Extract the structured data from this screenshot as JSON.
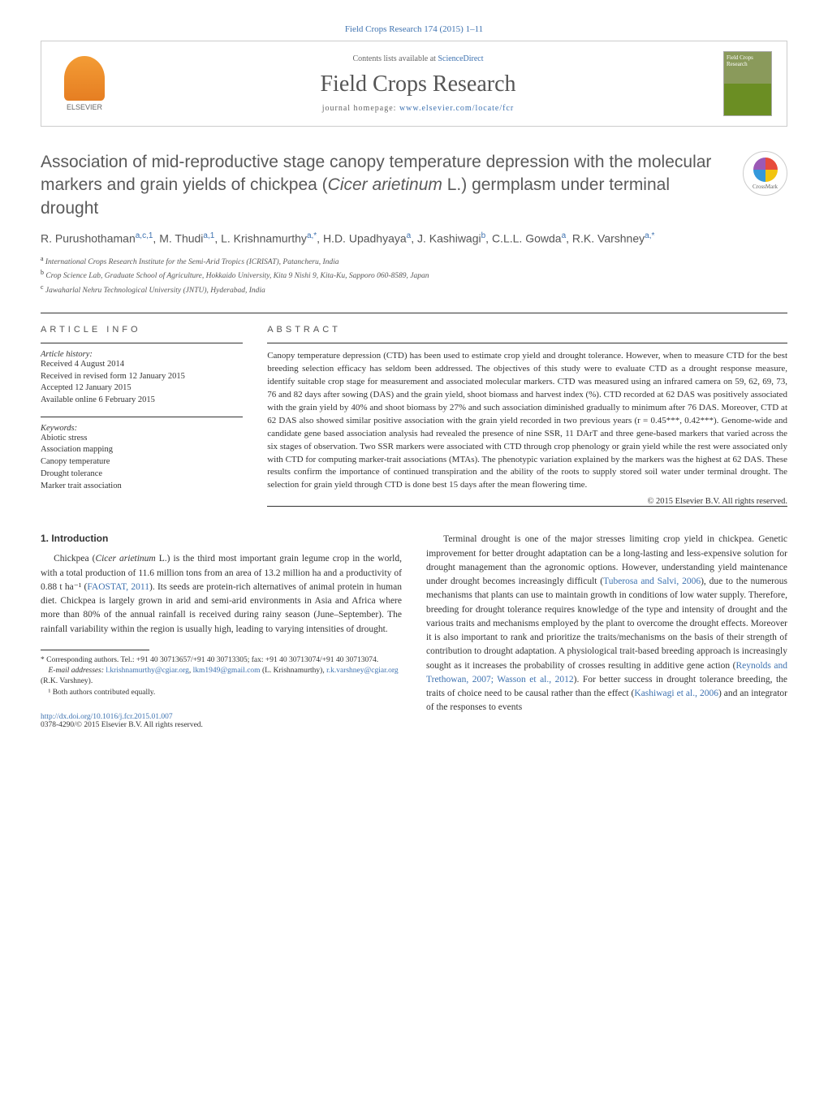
{
  "header": {
    "citation": "Field Crops Research 174 (2015) 1–11",
    "contents_prefix": "Contents lists available at ",
    "contents_link": "ScienceDirect",
    "journal_name": "Field Crops Research",
    "homepage_prefix": "journal homepage: ",
    "homepage_url": "www.elsevier.com/locate/fcr",
    "elsevier_label": "ELSEVIER",
    "cover_text": "Field Crops Research"
  },
  "crossmark": "CrossMark",
  "title": "Association of mid-reproductive stage canopy temperature depression with the molecular markers and grain yields of chickpea (Cicer arietinum L.) germplasm under terminal drought",
  "authors_html": "R. Purushothaman<sup>a,c,1</sup>, M. Thudi<sup>a,1</sup>, L. Krishnamurthy<sup>a,*</sup>, H.D. Upadhyaya<sup>a</sup>, J. Kashiwagi<sup>b</sup>, C.L.L. Gowda<sup>a</sup>, R.K. Varshney<sup>a,*</sup>",
  "affiliations": [
    {
      "sup": "a",
      "text": "International Crops Research Institute for the Semi-Arid Tropics (ICRISAT), Patancheru, India"
    },
    {
      "sup": "b",
      "text": "Crop Science Lab, Graduate School of Agriculture, Hokkaido University, Kita 9 Nishi 9, Kita-Ku, Sapporo 060-8589, Japan"
    },
    {
      "sup": "c",
      "text": "Jawaharlal Nehru Technological University (JNTU), Hyderabad, India"
    }
  ],
  "article_info": {
    "header": "article info",
    "history_label": "Article history:",
    "history": [
      "Received 4 August 2014",
      "Received in revised form 12 January 2015",
      "Accepted 12 January 2015",
      "Available online 6 February 2015"
    ],
    "keywords_label": "Keywords:",
    "keywords": [
      "Abiotic stress",
      "Association mapping",
      "Canopy temperature",
      "Drought tolerance",
      "Marker trait association"
    ]
  },
  "abstract": {
    "header": "abstract",
    "text": "Canopy temperature depression (CTD) has been used to estimate crop yield and drought tolerance. However, when to measure CTD for the best breeding selection efficacy has seldom been addressed. The objectives of this study were to evaluate CTD as a drought response measure, identify suitable crop stage for measurement and associated molecular markers. CTD was measured using an infrared camera on 59, 62, 69, 73, 76 and 82 days after sowing (DAS) and the grain yield, shoot biomass and harvest index (%). CTD recorded at 62 DAS was positively associated with the grain yield by 40% and shoot biomass by 27% and such association diminished gradually to minimum after 76 DAS. Moreover, CTD at 62 DAS also showed similar positive association with the grain yield recorded in two previous years (r = 0.45***, 0.42***). Genome-wide and candidate gene based association analysis had revealed the presence of nine SSR, 11 DArT and three gene-based markers that varied across the six stages of observation. Two SSR markers were associated with CTD through crop phenology or grain yield while the rest were associated only with CTD for computing marker-trait associations (MTAs). The phenotypic variation explained by the markers was the highest at 62 DAS. These results confirm the importance of continued transpiration and the ability of the roots to supply stored soil water under terminal drought. The selection for grain yield through CTD is done best 15 days after the mean flowering time.",
    "copyright": "© 2015 Elsevier B.V. All rights reserved."
  },
  "body": {
    "section_heading": "1. Introduction",
    "col1_p1_pre": "Chickpea (",
    "col1_p1_em": "Cicer arietinum",
    "col1_p1_mid": " L.) is the third most important grain legume crop in the world, with a total production of 11.6 million tons from an area of 13.2 million ha and a productivity of 0.88 t ha⁻¹ (",
    "col1_p1_link": "FAOSTAT, 2011",
    "col1_p1_post": "). Its seeds are protein-rich alternatives of animal protein in human diet. Chickpea is largely grown in arid and semi-arid environments in Asia and Africa where more than 80% of the annual rainfall is received during rainy season (June–September). The rainfall variability within the region is usually high, leading to varying intensities of drought.",
    "col2_p1_pre": "Terminal drought is one of the major stresses limiting crop yield in chickpea. Genetic improvement for better drought adaptation can be a long-lasting and less-expensive solution for drought management than the agronomic options. However, understanding yield maintenance under drought becomes increasingly difficult (",
    "col2_p1_link1": "Tuberosa and Salvi, 2006",
    "col2_p1_mid1": "), due to the numerous mechanisms that plants can use to maintain growth in conditions of low water supply. Therefore, breeding for drought tolerance requires knowledge of the type and intensity of drought and the various traits and mechanisms employed by the plant to overcome the drought effects. Moreover it is also important to rank and prioritize the traits/mechanisms on the basis of their strength of contribution to drought adaptation. A physiological trait-based breeding approach is increasingly sought as it increases the probability of crosses resulting in additive gene action (",
    "col2_p1_link2": "Reynolds and Trethowan, 2007; Wasson et al., 2012",
    "col2_p1_mid2": "). For better success in drought tolerance breeding, the traits of choice need to be causal rather than the effect (",
    "col2_p1_link3": "Kashiwagi et al., 2006",
    "col2_p1_post": ") and an integrator of the responses to events"
  },
  "footnotes": {
    "corr_label": "* Corresponding authors. Tel.: +91 40 30713657/+91 40 30713305; fax: +91 40 30713074/+91 40 30713074.",
    "email_label": "E-mail addresses: ",
    "email1": "l.krishnamurthy@cgiar.org",
    "email1_sep": ", ",
    "email2": "lkm1949@gmail.com",
    "name1": " (L. Krishnamurthy), ",
    "email3": "r.k.varshney@cgiar.org",
    "name2": " (R.K. Varshney).",
    "equal": "¹ Both authors contributed equally."
  },
  "doi": {
    "url": "http://dx.doi.org/10.1016/j.fcr.2015.01.007",
    "issn": "0378-4290/© 2015 Elsevier B.V. All rights reserved."
  },
  "colors": {
    "link": "#3e72b0",
    "text": "#333333",
    "heading_gray": "#5a5a5a",
    "border": "#333333"
  }
}
